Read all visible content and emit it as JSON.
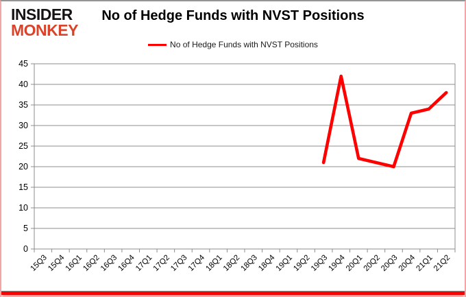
{
  "logo": {
    "line1": "INSIDER",
    "line2": "MONKEY"
  },
  "header": {
    "title": "No of Hedge Funds with NVST Positions"
  },
  "legend": {
    "label": "No of Hedge Funds with NVST Positions"
  },
  "colors": {
    "line": "#fe0000",
    "grid": "#8c8c8c",
    "axis_text": "#000000",
    "logo_red": "#d9432a",
    "border_pink": "#f2a6a6",
    "border_bottom": "#fe0000"
  },
  "chart_data": {
    "type": "line",
    "title": "No of Hedge Funds with NVST Positions",
    "categories": [
      "15Q3",
      "15Q4",
      "16Q1",
      "16Q2",
      "16Q3",
      "16Q4",
      "17Q1",
      "17Q2",
      "17Q3",
      "17Q4",
      "18Q1",
      "18Q2",
      "18Q3",
      "18Q4",
      "19Q1",
      "19Q2",
      "19Q3",
      "19Q4",
      "20Q1",
      "20Q2",
      "20Q3",
      "20Q4",
      "21Q1",
      "21Q2"
    ],
    "series": [
      {
        "name": "No of Hedge Funds with NVST Positions",
        "color": "#fe0000",
        "values": [
          null,
          null,
          null,
          null,
          null,
          null,
          null,
          null,
          null,
          null,
          null,
          null,
          null,
          null,
          null,
          null,
          21,
          42,
          22,
          21,
          20,
          33,
          34,
          38
        ]
      }
    ],
    "ylim": [
      0,
      45
    ],
    "ytick_step": 5,
    "grid": true,
    "legend_position": "top-center"
  }
}
